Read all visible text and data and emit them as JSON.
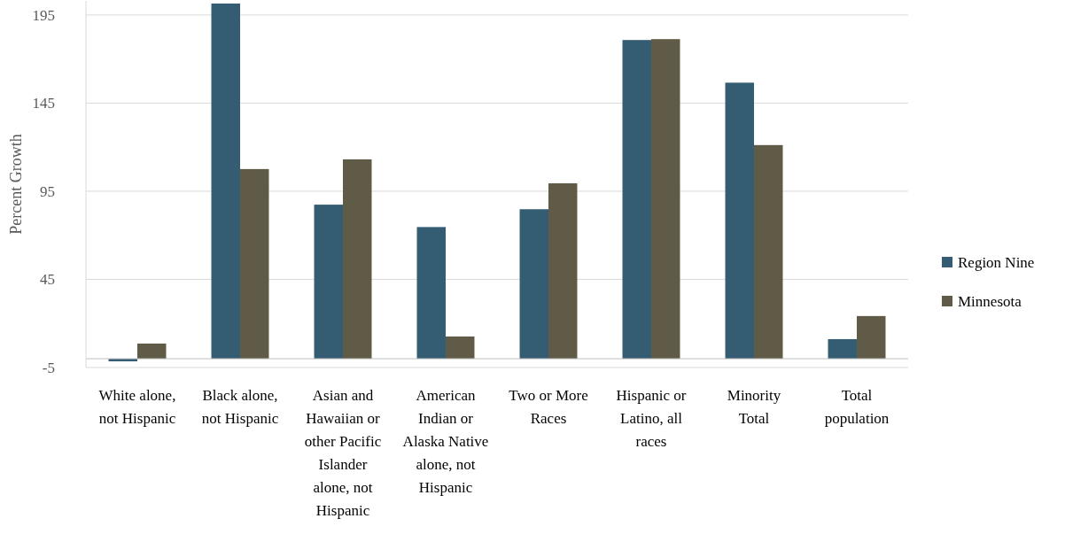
{
  "chart_data": {
    "type": "bar",
    "ylabel": "Percent Growth",
    "categories": [
      "White alone, not Hispanic",
      "Black alone, not Hispanic",
      "Asian and Hawaiian or other Pacific Islander alone, not Hispanic",
      "American Indian or Alaska Native alone, not Hispanic",
      "Two or More Races",
      "Hispanic or Latino, all races",
      "Minority Total",
      "Total population"
    ],
    "series": [
      {
        "name": "Region Nine",
        "color": "#345d73",
        "values": [
          -1.5,
          201.5,
          87.4,
          74.7,
          84.8,
          180.8,
          156.6,
          11.1
        ]
      },
      {
        "name": "Minnesota",
        "color": "#5f5b47",
        "values": [
          8.6,
          107.6,
          113.1,
          12.6,
          99.5,
          181.3,
          121.2,
          24.2
        ]
      }
    ],
    "ylim": [
      -5,
      203
    ],
    "yticks": [
      -5,
      45,
      95,
      145,
      195
    ],
    "grid": "y",
    "legend": "right"
  }
}
